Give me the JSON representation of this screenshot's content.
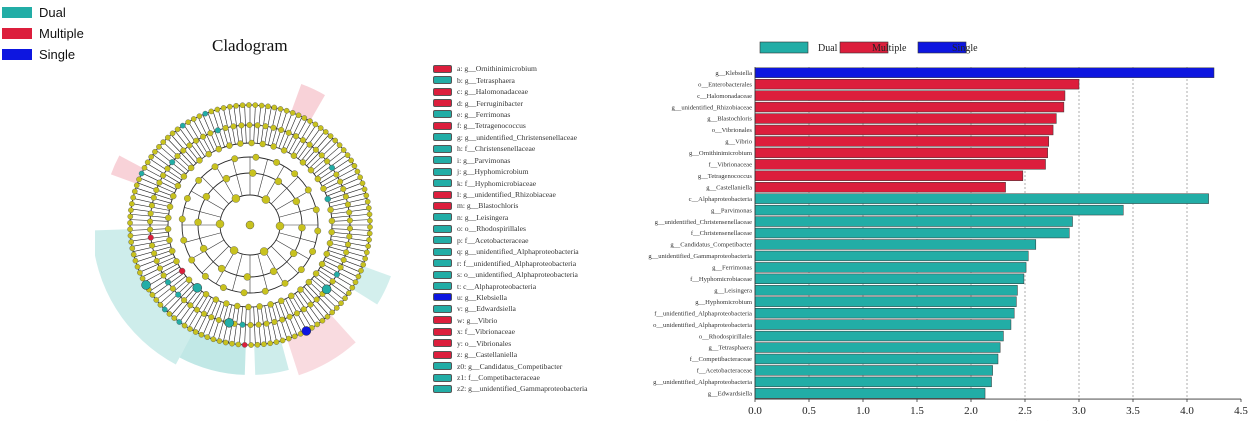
{
  "legend": [
    {
      "label": "Dual",
      "color": "#22ada6"
    },
    {
      "label": "Multiple",
      "color": "#dc1e3c"
    },
    {
      "label": "Single",
      "color": "#0d16e0"
    }
  ],
  "cladogram_title": "Cladogram",
  "taxa_legend": [
    {
      "label": "a: g__Ornithinimicrobium",
      "group": "Multiple"
    },
    {
      "label": "b: g__Tetrasphaera",
      "group": "Dual"
    },
    {
      "label": "c: g__Halomonadaceae",
      "group": "Multiple"
    },
    {
      "label": "d: g__Ferruginibacter",
      "group": "Multiple"
    },
    {
      "label": "e: g__Ferrimonas",
      "group": "Dual"
    },
    {
      "label": "f: g__Tetragenococcus",
      "group": "Multiple"
    },
    {
      "label": "g: g__unidentified_Christensenellaceae",
      "group": "Dual"
    },
    {
      "label": "h: f__Christensenellaceae",
      "group": "Dual"
    },
    {
      "label": "i: g__Parvimonas",
      "group": "Dual"
    },
    {
      "label": "j: g__Hyphomicrobium",
      "group": "Dual"
    },
    {
      "label": "k: f__Hyphomicrobiaceae",
      "group": "Dual"
    },
    {
      "label": "l: g__unidentified_Rhizobiaceae",
      "group": "Multiple"
    },
    {
      "label": "m: g__Blastochloris",
      "group": "Multiple"
    },
    {
      "label": "n: g__Leisingera",
      "group": "Dual"
    },
    {
      "label": "o: o__Rhodospirillales",
      "group": "Dual"
    },
    {
      "label": "p: f__Acetobacteraceae",
      "group": "Dual"
    },
    {
      "label": "q: g__unidentified_Alphaproteobacteria",
      "group": "Dual"
    },
    {
      "label": "r: f__unidentified_Alphaproteobacteria",
      "group": "Dual"
    },
    {
      "label": "s: o__unidentified_Alphaproteobacteria",
      "group": "Dual"
    },
    {
      "label": "t: c__Alphaproteobacteria",
      "group": "Dual"
    },
    {
      "label": "u: g__Klebsiella",
      "group": "Single"
    },
    {
      "label": "v: g__Edwardsiella",
      "group": "Dual"
    },
    {
      "label": "w: g__Vibrio",
      "group": "Multiple"
    },
    {
      "label": "x: f__Vibrionaceae",
      "group": "Multiple"
    },
    {
      "label": "y: o__Vibrionales",
      "group": "Multiple"
    },
    {
      "label": "z: g__Castellaniella",
      "group": "Multiple"
    },
    {
      "label": "z0: g__Candidatus_Competibacter",
      "group": "Dual"
    },
    {
      "label": "z1: f__Competibacteraceae",
      "group": "Dual"
    },
    {
      "label": "z2: g__unidentified_Gammaproteobacteria",
      "group": "Dual"
    }
  ],
  "chart_data": {
    "type": "bar",
    "orientation": "horizontal",
    "xlabel": "LDA SCORE (log 10)",
    "xlim": [
      0,
      4.5
    ],
    "xticks": [
      "0.0",
      "0.5",
      "1.0",
      "1.5",
      "2.0",
      "2.5",
      "3.0",
      "3.5",
      "4.0",
      "4.5"
    ],
    "grid": "vertical dashed",
    "legend_position": "top",
    "categories": [
      "g__Klebsiella",
      "o__Enterobacterales",
      "c__Halomonadaceae",
      "g__unidentified_Rhizobiaceae",
      "g__Blastochloris",
      "o__Vibrionales",
      "g__Vibrio",
      "g__Ornithinimicrobium",
      "f__Vibrionaceae",
      "g__Tetragenococcus",
      "g__Castellaniella",
      "c__Alphaproteobacteria",
      "g__Parvimonas",
      "g__unidentified_Christensenellaceae",
      "f__Christensenellaceae",
      "g__Candidatus_Competibacter",
      "g__unidentified_Gammaproteobacteria",
      "g__Ferrimonas",
      "f__Hyphomicrobiaceae",
      "g__Leisingera",
      "g__Hyphomicrobium",
      "f__unidentified_Alphaproteobacteria",
      "o__unidentified_Alphaproteobacteria",
      "o__Rhodospirillales",
      "g__Tetrasphaera",
      "f__Competibacteraceae",
      "f__Acetobacteraceae",
      "g__unidentified_Alphaproteobacteria",
      "g__Edwardsiella"
    ],
    "groups": [
      "Single",
      "Multiple",
      "Multiple",
      "Multiple",
      "Multiple",
      "Multiple",
      "Multiple",
      "Multiple",
      "Multiple",
      "Multiple",
      "Multiple",
      "Dual",
      "Dual",
      "Dual",
      "Dual",
      "Dual",
      "Dual",
      "Dual",
      "Dual",
      "Dual",
      "Dual",
      "Dual",
      "Dual",
      "Dual",
      "Dual",
      "Dual",
      "Dual",
      "Dual",
      "Dual"
    ],
    "values": [
      4.25,
      3.0,
      2.87,
      2.86,
      2.79,
      2.76,
      2.72,
      2.71,
      2.69,
      2.48,
      2.32,
      4.2,
      3.41,
      2.94,
      2.91,
      2.6,
      2.53,
      2.51,
      2.49,
      2.43,
      2.42,
      2.4,
      2.37,
      2.3,
      2.27,
      2.25,
      2.2,
      2.19,
      2.13
    ],
    "series_legend": [
      "Dual",
      "Multiple",
      "Single"
    ]
  }
}
